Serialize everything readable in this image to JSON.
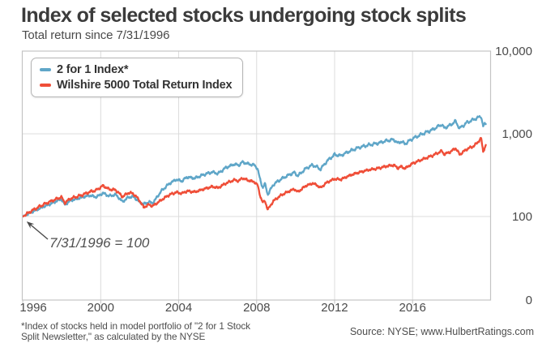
{
  "chart_data": {
    "type": "line",
    "title": "Index of selected stocks undergoing stock splits",
    "subtitle": "Total return since 7/31/1996",
    "annotation": {
      "text": "7/31/1996 = 100"
    },
    "baseline": {
      "date": "7/31/1996",
      "value": 100
    },
    "x_axis": {
      "tick_labels": [
        "1996",
        "2000",
        "2004",
        "2008",
        "2012",
        "2016"
      ],
      "tick_years": [
        1996.58,
        2000.58,
        2004.58,
        2008.58,
        2012.58,
        2016.58
      ],
      "start_year": 1996.58,
      "end_year": 2020.6,
      "grid": true
    },
    "y_axis": {
      "scale": "log",
      "tick_labels": [
        "10,000",
        "1,000",
        "100",
        "0"
      ],
      "tick_values": [
        10000,
        1000,
        100,
        0
      ],
      "grid": true,
      "side": "right"
    },
    "series": [
      {
        "name": "2 for 1 Index*",
        "color": "#5fa6c8",
        "points": [
          [
            1996.58,
            100
          ],
          [
            1997.0,
            112
          ],
          [
            1997.6,
            130
          ],
          [
            1998.0,
            142
          ],
          [
            1998.55,
            163
          ],
          [
            1998.75,
            138
          ],
          [
            1999.0,
            155
          ],
          [
            1999.6,
            170
          ],
          [
            2000.0,
            180
          ],
          [
            2000.35,
            172
          ],
          [
            2000.7,
            192
          ],
          [
            2001.0,
            177
          ],
          [
            2001.35,
            184
          ],
          [
            2001.7,
            151
          ],
          [
            2002.0,
            171
          ],
          [
            2002.25,
            174
          ],
          [
            2002.55,
            151
          ],
          [
            2002.78,
            141
          ],
          [
            2003.05,
            150
          ],
          [
            2003.25,
            145
          ],
          [
            2003.7,
            205
          ],
          [
            2004.1,
            250
          ],
          [
            2004.45,
            280
          ],
          [
            2004.75,
            268
          ],
          [
            2005.0,
            300
          ],
          [
            2005.4,
            290
          ],
          [
            2005.85,
            320
          ],
          [
            2006.3,
            345
          ],
          [
            2006.6,
            330
          ],
          [
            2007.0,
            390
          ],
          [
            2007.45,
            430
          ],
          [
            2007.65,
            415
          ],
          [
            2007.85,
            455
          ],
          [
            2008.1,
            435
          ],
          [
            2008.45,
            418
          ],
          [
            2008.62,
            385
          ],
          [
            2008.78,
            265
          ],
          [
            2008.9,
            225
          ],
          [
            2009.0,
            250
          ],
          [
            2009.15,
            185
          ],
          [
            2009.45,
            245
          ],
          [
            2009.85,
            285
          ],
          [
            2010.2,
            315
          ],
          [
            2010.5,
            340
          ],
          [
            2010.7,
            312
          ],
          [
            2011.1,
            380
          ],
          [
            2011.45,
            420
          ],
          [
            2011.65,
            400
          ],
          [
            2011.85,
            372
          ],
          [
            2012.2,
            470
          ],
          [
            2012.58,
            560
          ],
          [
            2012.9,
            545
          ],
          [
            2013.3,
            610
          ],
          [
            2013.8,
            680
          ],
          [
            2014.3,
            730
          ],
          [
            2014.8,
            770
          ],
          [
            2015.3,
            830
          ],
          [
            2015.62,
            850
          ],
          [
            2015.82,
            770
          ],
          [
            2016.0,
            810
          ],
          [
            2016.18,
            755
          ],
          [
            2016.6,
            880
          ],
          [
            2017.1,
            1000
          ],
          [
            2017.6,
            1120
          ],
          [
            2018.08,
            1300
          ],
          [
            2018.2,
            1170
          ],
          [
            2018.55,
            1290
          ],
          [
            2018.78,
            1420
          ],
          [
            2019.0,
            1160
          ],
          [
            2019.35,
            1360
          ],
          [
            2019.75,
            1500
          ],
          [
            2020.1,
            1630
          ],
          [
            2020.2,
            1230
          ],
          [
            2020.28,
            1300
          ],
          [
            2020.35,
            1340
          ]
        ]
      },
      {
        "name": "Wilshire 5000 Total Return Index",
        "color": "#ef4e38",
        "points": [
          [
            1996.58,
            100
          ],
          [
            1997.0,
            116
          ],
          [
            1997.6,
            138
          ],
          [
            1998.0,
            152
          ],
          [
            1998.55,
            172
          ],
          [
            1998.75,
            146
          ],
          [
            1999.0,
            164
          ],
          [
            1999.6,
            181
          ],
          [
            2000.0,
            198
          ],
          [
            2000.35,
            208
          ],
          [
            2000.7,
            236
          ],
          [
            2001.0,
            214
          ],
          [
            2001.35,
            209
          ],
          [
            2001.7,
            173
          ],
          [
            2002.0,
            194
          ],
          [
            2002.25,
            189
          ],
          [
            2002.55,
            159
          ],
          [
            2002.78,
            129
          ],
          [
            2003.05,
            139
          ],
          [
            2003.25,
            134
          ],
          [
            2003.7,
            159
          ],
          [
            2004.1,
            183
          ],
          [
            2004.45,
            196
          ],
          [
            2004.75,
            190
          ],
          [
            2005.0,
            203
          ],
          [
            2005.4,
            198
          ],
          [
            2005.85,
            214
          ],
          [
            2006.3,
            230
          ],
          [
            2006.6,
            222
          ],
          [
            2007.0,
            252
          ],
          [
            2007.45,
            278
          ],
          [
            2007.65,
            268
          ],
          [
            2007.85,
            292
          ],
          [
            2008.1,
            276
          ],
          [
            2008.45,
            262
          ],
          [
            2008.62,
            243
          ],
          [
            2008.78,
            172
          ],
          [
            2008.9,
            147
          ],
          [
            2009.0,
            156
          ],
          [
            2009.15,
            121
          ],
          [
            2009.45,
            155
          ],
          [
            2009.85,
            182
          ],
          [
            2010.2,
            200
          ],
          [
            2010.5,
            215
          ],
          [
            2010.7,
            198
          ],
          [
            2011.1,
            235
          ],
          [
            2011.45,
            252
          ],
          [
            2011.65,
            242
          ],
          [
            2011.85,
            222
          ],
          [
            2012.2,
            260
          ],
          [
            2012.58,
            285
          ],
          [
            2012.9,
            280
          ],
          [
            2013.3,
            310
          ],
          [
            2013.8,
            340
          ],
          [
            2014.3,
            365
          ],
          [
            2014.8,
            382
          ],
          [
            2015.3,
            408
          ],
          [
            2015.62,
            418
          ],
          [
            2015.82,
            385
          ],
          [
            2016.0,
            402
          ],
          [
            2016.18,
            380
          ],
          [
            2016.6,
            440
          ],
          [
            2017.1,
            492
          ],
          [
            2017.6,
            545
          ],
          [
            2018.08,
            620
          ],
          [
            2018.2,
            565
          ],
          [
            2018.55,
            610
          ],
          [
            2018.78,
            672
          ],
          [
            2019.0,
            560
          ],
          [
            2019.35,
            650
          ],
          [
            2019.75,
            718
          ],
          [
            2020.1,
            880
          ],
          [
            2020.2,
            610
          ],
          [
            2020.28,
            680
          ],
          [
            2020.35,
            730
          ]
        ]
      }
    ]
  },
  "footer": {
    "note_line1": "*Index of stocks held in model portfolio of \"2 for 1 Stock",
    "note_line2": "Split Newsletter,\" as calculated by the NYSE",
    "source": "Source: NYSE; www.HulbertRatings.com"
  }
}
